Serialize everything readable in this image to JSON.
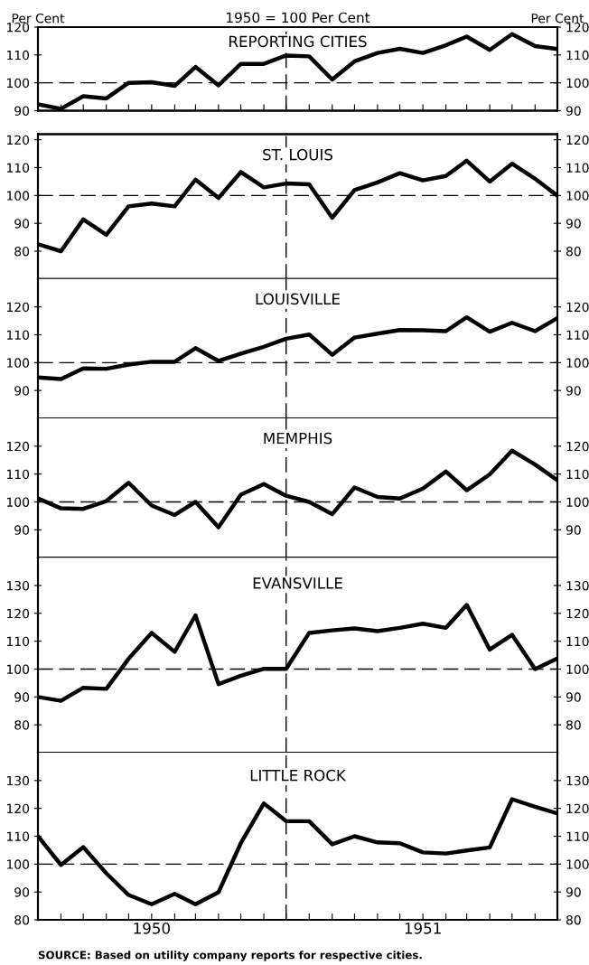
{
  "chart_data": [
    {
      "type": "line",
      "title": "REPORTING CITIES",
      "subtitle": "1950 = 100 Per Cent",
      "ylabel": "Per Cent",
      "y2label": "Per Cent",
      "x": [
        "1949-08",
        "1949-09",
        "1949-10",
        "1949-11",
        "1949-12",
        "1950-01",
        "1950-02",
        "1950-03",
        "1950-04",
        "1950-05",
        "1950-06",
        "1950-07",
        "1950-08",
        "1950-09",
        "1950-10",
        "1950-11",
        "1950-12",
        "1951-01",
        "1951-02",
        "1951-03",
        "1951-04",
        "1951-05",
        "1951-06",
        "1951-07"
      ],
      "series": [
        {
          "color": "#000000",
          "values": [
            92.3,
            90.7,
            95.2,
            94.4,
            100,
            100.2,
            98.9,
            105.7,
            99.1,
            106.8,
            106.8,
            109.8,
            109.5,
            101.2,
            107.7,
            110.7,
            112.2,
            110.7,
            113.5,
            116.6,
            111.8,
            117.5,
            113.2,
            112.1
          ]
        }
      ],
      "xlim": [
        "1949-08",
        "1951-07"
      ],
      "xticks": [
        {
          "value": "1949-08",
          "label": null
        },
        {
          "value": "1949-09",
          "label": null
        },
        {
          "value": "1949-10",
          "label": null
        },
        {
          "value": "1949-11",
          "label": null
        },
        {
          "value": "1949-12",
          "label": null
        },
        {
          "value": "1950-01",
          "label": null
        },
        {
          "value": "1950-02",
          "label": null
        },
        {
          "value": "1950-03",
          "label": null
        },
        {
          "value": "1950-04",
          "label": null
        },
        {
          "value": "1950-05",
          "label": null
        },
        {
          "value": "1950-06",
          "label": null
        },
        {
          "value": "1950-07",
          "label": null
        },
        {
          "value": "1950-08",
          "label": null
        },
        {
          "value": "1950-09",
          "label": null
        },
        {
          "value": "1950-10",
          "label": null
        },
        {
          "value": "1950-11",
          "label": null
        },
        {
          "value": "1950-12",
          "label": null
        },
        {
          "value": "1951-01",
          "label": null
        },
        {
          "value": "1951-02",
          "label": null
        },
        {
          "value": "1951-03",
          "label": null
        },
        {
          "value": "1951-04",
          "label": null
        },
        {
          "value": "1951-05",
          "label": null
        },
        {
          "value": "1951-06",
          "label": null
        },
        {
          "value": "1951-07",
          "label": null
        }
      ],
      "ylim": [
        90,
        120
      ],
      "yticks": [
        90,
        100,
        110,
        120
      ],
      "y2lim": [
        90,
        120
      ],
      "y2ticks": [
        90,
        100,
        110,
        120
      ],
      "tick_labels": "y",
      "ref_lines": [
        {
          "axis": "y",
          "value": 100,
          "color": "#000000",
          "line_style": "dashed"
        },
        {
          "axis": "x",
          "value": "1950-07",
          "color": "#000000",
          "line_style": "dashed"
        }
      ],
      "grid": false,
      "legend": false
    },
    {
      "type": "line",
      "title": "ST. LOUIS",
      "x": [
        "1949-08",
        "1949-09",
        "1949-10",
        "1949-11",
        "1949-12",
        "1950-01",
        "1950-02",
        "1950-03",
        "1950-04",
        "1950-05",
        "1950-06",
        "1950-07",
        "1950-08",
        "1950-09",
        "1950-10",
        "1950-11",
        "1950-12",
        "1951-01",
        "1951-02",
        "1951-03",
        "1951-04",
        "1951-05",
        "1951-06",
        "1951-07"
      ],
      "series": [
        {
          "color": "#000000",
          "values": [
            82.5,
            80,
            91.4,
            85.9,
            96.1,
            97.1,
            96.1,
            105.7,
            99.1,
            108.4,
            102.9,
            104.3,
            104,
            92,
            101.9,
            104.7,
            108,
            105.4,
            107,
            112.5,
            105,
            111.4,
            106,
            99.9
          ]
        }
      ],
      "xlim": [
        "1949-08",
        "1951-07"
      ],
      "ylim": [
        70,
        122
      ],
      "yticks": [
        80,
        90,
        100,
        110,
        120
      ],
      "y2lim": [
        70,
        122
      ],
      "y2ticks": [
        80,
        90,
        100,
        110,
        120
      ],
      "tick_labels": "y",
      "ref_lines": [
        {
          "axis": "y",
          "value": 100,
          "color": "#000000",
          "line_style": "dashed"
        },
        {
          "axis": "x",
          "value": "1950-07",
          "color": "#000000",
          "line_style": "dashed"
        }
      ],
      "grid": false,
      "legend": false
    },
    {
      "type": "line",
      "title": "LOUISVILLE",
      "x": [
        "1949-08",
        "1949-09",
        "1949-10",
        "1949-11",
        "1949-12",
        "1950-01",
        "1950-02",
        "1950-03",
        "1950-04",
        "1950-05",
        "1950-06",
        "1950-07",
        "1950-08",
        "1950-09",
        "1950-10",
        "1950-11",
        "1950-12",
        "1951-01",
        "1951-02",
        "1951-03",
        "1951-04",
        "1951-05",
        "1951-06",
        "1951-07"
      ],
      "series": [
        {
          "color": "#000000",
          "values": [
            94.7,
            94.1,
            97.9,
            97.8,
            99.3,
            100.3,
            100.3,
            105.2,
            100.6,
            103.2,
            105.7,
            108.6,
            110.1,
            102.8,
            109,
            110.4,
            111.7,
            111.6,
            111.3,
            116.3,
            111.1,
            114.3,
            111.3,
            116
          ]
        }
      ],
      "xlim": [
        "1949-08",
        "1951-07"
      ],
      "ylim": [
        80,
        130
      ],
      "yticks": [
        90,
        100,
        110,
        120
      ],
      "y2lim": [
        80,
        130
      ],
      "y2ticks": [
        90,
        100,
        110,
        120
      ],
      "tick_labels": "y",
      "ref_lines": [
        {
          "axis": "y",
          "value": 100,
          "color": "#000000",
          "line_style": "dashed"
        },
        {
          "axis": "x",
          "value": "1950-07",
          "color": "#000000",
          "line_style": "dashed"
        }
      ],
      "grid": false,
      "legend": false
    },
    {
      "type": "line",
      "title": "MEMPHIS",
      "x": [
        "1949-08",
        "1949-09",
        "1949-10",
        "1949-11",
        "1949-12",
        "1950-01",
        "1950-02",
        "1950-03",
        "1950-04",
        "1950-05",
        "1950-06",
        "1950-07",
        "1950-08",
        "1950-09",
        "1950-10",
        "1950-11",
        "1950-12",
        "1951-01",
        "1951-02",
        "1951-03",
        "1951-04",
        "1951-05",
        "1951-06",
        "1951-07"
      ],
      "series": [
        {
          "color": "#000000",
          "values": [
            101.3,
            97.7,
            97.5,
            100.3,
            106.9,
            98.7,
            95.3,
            100,
            90.9,
            102.6,
            106.4,
            102.2,
            100,
            95.6,
            105.2,
            101.8,
            101.2,
            104.8,
            110.9,
            104.2,
            109.9,
            118.4,
            113.4,
            107.8
          ]
        }
      ],
      "xlim": [
        "1949-08",
        "1951-07"
      ],
      "ylim": [
        80,
        130
      ],
      "yticks": [
        90,
        100,
        110,
        120
      ],
      "y2lim": [
        80,
        130
      ],
      "y2ticks": [
        90,
        100,
        110,
        120
      ],
      "tick_labels": "y",
      "ref_lines": [
        {
          "axis": "y",
          "value": 100,
          "color": "#000000",
          "line_style": "dashed"
        },
        {
          "axis": "x",
          "value": "1950-07",
          "color": "#000000",
          "line_style": "dashed"
        }
      ],
      "grid": false,
      "legend": false
    },
    {
      "type": "line",
      "title": "EVANSVILLE",
      "x": [
        "1949-08",
        "1949-09",
        "1949-10",
        "1949-11",
        "1949-12",
        "1950-01",
        "1950-02",
        "1950-03",
        "1950-04",
        "1950-05",
        "1950-06",
        "1950-07",
        "1950-08",
        "1950-09",
        "1950-10",
        "1950-11",
        "1950-12",
        "1951-01",
        "1951-02",
        "1951-03",
        "1951-04",
        "1951-05",
        "1951-06",
        "1951-07"
      ],
      "series": [
        {
          "color": "#000000",
          "values": [
            90,
            88.6,
            93.3,
            92.9,
            103.7,
            113,
            106.2,
            119.3,
            94.6,
            97.6,
            100.1,
            100.1,
            113,
            113.9,
            114.6,
            113.6,
            114.8,
            116.3,
            114.8,
            123,
            107,
            112.3,
            100,
            103.8
          ]
        }
      ],
      "xlim": [
        "1949-08",
        "1951-07"
      ],
      "ylim": [
        70,
        140
      ],
      "yticks": [
        80,
        90,
        100,
        110,
        120,
        130
      ],
      "y2lim": [
        70,
        140
      ],
      "y2ticks": [
        80,
        90,
        100,
        110,
        120,
        130
      ],
      "tick_labels": "y",
      "ref_lines": [
        {
          "axis": "y",
          "value": 100,
          "color": "#000000",
          "line_style": "dashed"
        },
        {
          "axis": "x",
          "value": "1950-07",
          "color": "#000000",
          "line_style": "dashed"
        }
      ],
      "grid": false,
      "legend": false
    },
    {
      "type": "line",
      "title": "LITTLE ROCK",
      "annotations": [
        "SOURCE: Based on utility company reports for respective cities."
      ],
      "x": [
        "1949-08",
        "1949-09",
        "1949-10",
        "1949-11",
        "1949-12",
        "1950-01",
        "1950-02",
        "1950-03",
        "1950-04",
        "1950-05",
        "1950-06",
        "1950-07",
        "1950-08",
        "1950-09",
        "1950-10",
        "1950-11",
        "1950-12",
        "1951-01",
        "1951-02",
        "1951-03",
        "1951-04",
        "1951-05",
        "1951-06",
        "1951-07"
      ],
      "series": [
        {
          "color": "#000000",
          "values": [
            110,
            99.7,
            106.1,
            96.7,
            88.9,
            85.6,
            89.3,
            85.6,
            89.9,
            107.5,
            121.8,
            115.4,
            115.4,
            107.1,
            110,
            107.8,
            107.5,
            104.2,
            103.8,
            104.9,
            106,
            123.3,
            120.6,
            118.2
          ]
        }
      ],
      "xlim": [
        "1949-08",
        "1951-07"
      ],
      "xticks": [
        {
          "value": "1949-08",
          "label": null
        },
        {
          "value": "1949-09",
          "label": null
        },
        {
          "value": "1949-10",
          "label": null
        },
        {
          "value": "1949-11",
          "label": null
        },
        {
          "value": "1949-12",
          "label": null
        },
        {
          "value": "1950-01",
          "label": "1950"
        },
        {
          "value": "1950-02",
          "label": null
        },
        {
          "value": "1950-03",
          "label": null
        },
        {
          "value": "1950-04",
          "label": null
        },
        {
          "value": "1950-05",
          "label": null
        },
        {
          "value": "1950-06",
          "label": null
        },
        {
          "value": "1950-07",
          "label": null
        },
        {
          "value": "1950-08",
          "label": null
        },
        {
          "value": "1950-09",
          "label": null
        },
        {
          "value": "1950-10",
          "label": null
        },
        {
          "value": "1950-11",
          "label": null
        },
        {
          "value": "1950-12",
          "label": null
        },
        {
          "value": "1951-01",
          "label": "1951"
        },
        {
          "value": "1951-02",
          "label": null
        },
        {
          "value": "1951-03",
          "label": null
        },
        {
          "value": "1951-04",
          "label": null
        },
        {
          "value": "1951-05",
          "label": null
        },
        {
          "value": "1951-06",
          "label": null
        },
        {
          "value": "1951-07",
          "label": null
        }
      ],
      "ylim": [
        80,
        140
      ],
      "yticks": [
        80,
        90,
        100,
        110,
        120,
        130
      ],
      "y2lim": [
        80,
        140
      ],
      "y2ticks": [
        80,
        90,
        100,
        110,
        120,
        130
      ],
      "ref_lines": [
        {
          "axis": "y",
          "value": 100,
          "color": "#000000",
          "line_style": "dashed"
        },
        {
          "axis": "x",
          "value": "1950-07",
          "color": "#000000",
          "line_style": "dashed"
        }
      ],
      "grid": false,
      "legend": false
    }
  ]
}
